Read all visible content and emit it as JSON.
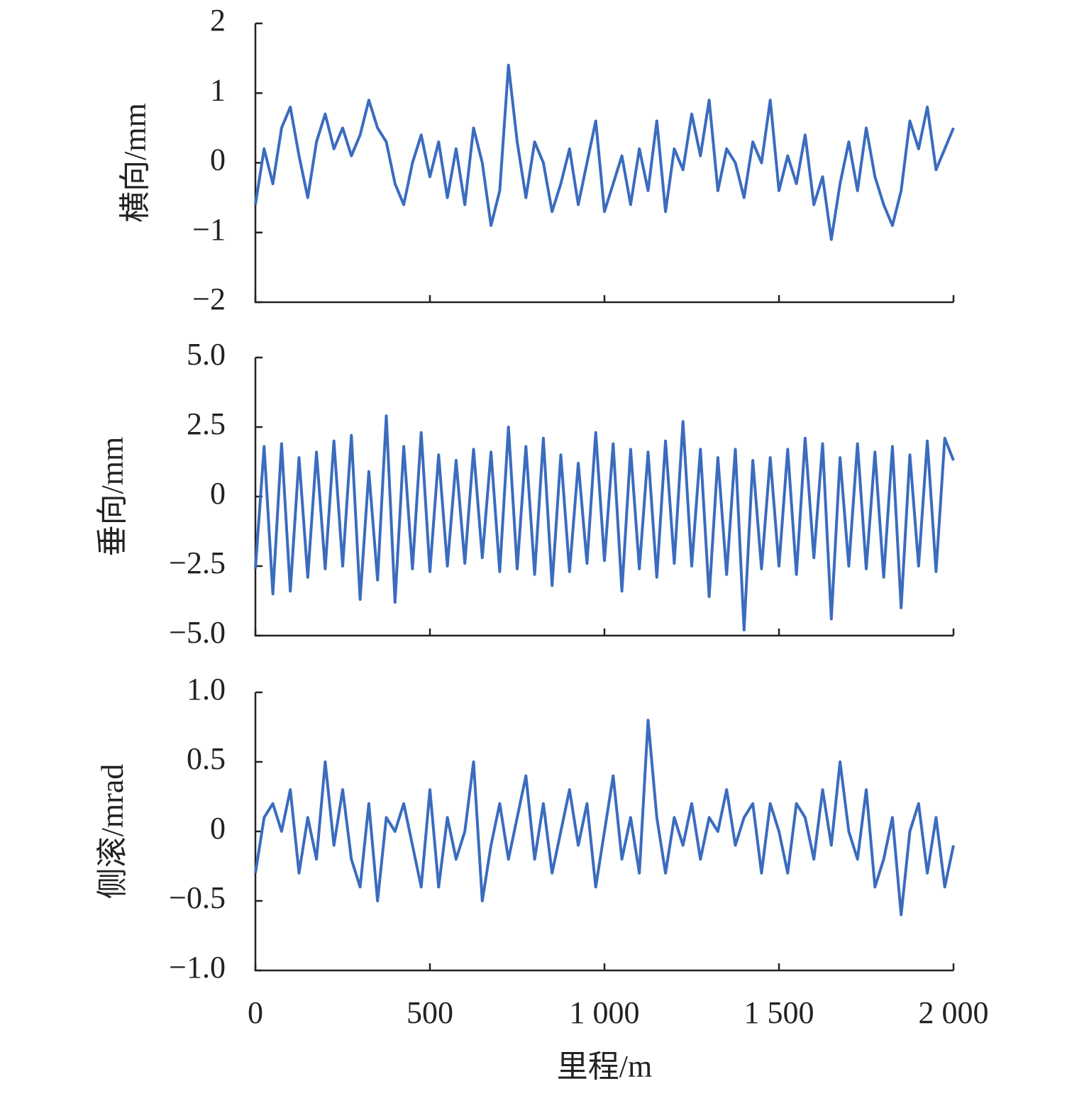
{
  "chart_data": [
    {
      "type": "line",
      "ylabel": "横向/mm",
      "x": [
        0,
        25,
        50,
        75,
        100,
        125,
        150,
        175,
        200,
        225,
        250,
        275,
        300,
        325,
        350,
        375,
        400,
        425,
        450,
        475,
        500,
        525,
        550,
        575,
        600,
        625,
        650,
        675,
        700,
        725,
        750,
        775,
        800,
        825,
        850,
        875,
        900,
        925,
        950,
        975,
        1000,
        1025,
        1050,
        1075,
        1100,
        1125,
        1150,
        1175,
        1200,
        1225,
        1250,
        1275,
        1300,
        1325,
        1350,
        1375,
        1400,
        1425,
        1450,
        1475,
        1500,
        1525,
        1550,
        1575,
        1600,
        1625,
        1650,
        1675,
        1700,
        1725,
        1750,
        1775,
        1800,
        1825,
        1850,
        1875,
        1900,
        1925,
        1950,
        1975,
        2000
      ],
      "series": [
        {
          "color": "#3a6cbf",
          "values": [
            -0.6,
            0.2,
            -0.3,
            0.5,
            0.8,
            0.1,
            -0.5,
            0.3,
            0.7,
            0.2,
            0.5,
            0.1,
            0.4,
            0.9,
            0.5,
            0.3,
            -0.3,
            -0.6,
            0.0,
            0.4,
            -0.2,
            0.3,
            -0.5,
            0.2,
            -0.6,
            0.5,
            0.0,
            -0.9,
            -0.4,
            1.4,
            0.3,
            -0.5,
            0.3,
            0.0,
            -0.7,
            -0.3,
            0.2,
            -0.6,
            0.0,
            0.6,
            -0.7,
            -0.3,
            0.1,
            -0.6,
            0.2,
            -0.4,
            0.6,
            -0.7,
            0.2,
            -0.1,
            0.7,
            0.1,
            0.9,
            -0.4,
            0.2,
            0.0,
            -0.5,
            0.3,
            0.0,
            0.9,
            -0.4,
            0.1,
            -0.3,
            0.4,
            -0.6,
            -0.2,
            -1.1,
            -0.3,
            0.3,
            -0.4,
            0.5,
            -0.2,
            -0.6,
            -0.9,
            -0.4,
            0.6,
            0.2,
            0.8,
            -0.1,
            0.2,
            0.5
          ]
        }
      ],
      "xlim": [
        0,
        2000
      ],
      "xticks": [
        0,
        500,
        1000,
        1500,
        2000
      ],
      "ylim": [
        -2,
        2
      ],
      "yticks": [
        {
          "value": -2,
          "label": "−2"
        },
        {
          "value": -1,
          "label": "−1"
        },
        0,
        1,
        2
      ],
      "grid": false
    },
    {
      "type": "line",
      "ylabel": "垂向/mm",
      "x": [
        0,
        25,
        50,
        75,
        100,
        125,
        150,
        175,
        200,
        225,
        250,
        275,
        300,
        325,
        350,
        375,
        400,
        425,
        450,
        475,
        500,
        525,
        550,
        575,
        600,
        625,
        650,
        675,
        700,
        725,
        750,
        775,
        800,
        825,
        850,
        875,
        900,
        925,
        950,
        975,
        1000,
        1025,
        1050,
        1075,
        1100,
        1125,
        1150,
        1175,
        1200,
        1225,
        1250,
        1275,
        1300,
        1325,
        1350,
        1375,
        1400,
        1425,
        1450,
        1475,
        1500,
        1525,
        1550,
        1575,
        1600,
        1625,
        1650,
        1675,
        1700,
        1725,
        1750,
        1775,
        1800,
        1825,
        1850,
        1875,
        1900,
        1925,
        1950,
        1975,
        2000
      ],
      "series": [
        {
          "color": "#3a6cbf",
          "values": [
            -2.6,
            1.8,
            -3.5,
            1.9,
            -3.4,
            1.4,
            -2.9,
            1.6,
            -2.6,
            2.0,
            -2.5,
            2.2,
            -3.7,
            0.9,
            -3.0,
            2.9,
            -3.8,
            1.8,
            -2.6,
            2.3,
            -2.7,
            1.5,
            -2.5,
            1.3,
            -2.4,
            1.7,
            -2.2,
            1.6,
            -2.7,
            2.5,
            -2.6,
            1.8,
            -2.8,
            2.1,
            -3.2,
            1.5,
            -2.7,
            1.2,
            -2.4,
            2.3,
            -2.3,
            1.9,
            -3.4,
            1.7,
            -2.6,
            1.6,
            -2.9,
            2.0,
            -2.4,
            2.7,
            -2.5,
            1.7,
            -3.6,
            1.4,
            -2.8,
            1.7,
            -4.8,
            1.3,
            -2.6,
            1.4,
            -2.5,
            1.7,
            -2.8,
            2.1,
            -2.2,
            1.9,
            -4.4,
            1.4,
            -2.5,
            1.9,
            -2.6,
            1.6,
            -2.9,
            1.8,
            -4.0,
            1.5,
            -2.5,
            2.0,
            -2.7,
            2.1,
            1.3
          ]
        }
      ],
      "xlim": [
        0,
        2000
      ],
      "xticks": [
        0,
        500,
        1000,
        1500,
        2000
      ],
      "ylim": [
        -5,
        5
      ],
      "yticks": [
        {
          "value": -5,
          "label": "−5.0"
        },
        {
          "value": -2.5,
          "label": "−2.5"
        },
        0,
        2.5,
        {
          "value": 5,
          "label": "5.0"
        }
      ],
      "grid": false
    },
    {
      "type": "line",
      "ylabel": "侧滚/mrad",
      "xlabel": "里程/m",
      "x": [
        0,
        25,
        50,
        75,
        100,
        125,
        150,
        175,
        200,
        225,
        250,
        275,
        300,
        325,
        350,
        375,
        400,
        425,
        450,
        475,
        500,
        525,
        550,
        575,
        600,
        625,
        650,
        675,
        700,
        725,
        750,
        775,
        800,
        825,
        850,
        875,
        900,
        925,
        950,
        975,
        1000,
        1025,
        1050,
        1075,
        1100,
        1125,
        1150,
        1175,
        1200,
        1225,
        1250,
        1275,
        1300,
        1325,
        1350,
        1375,
        1400,
        1425,
        1450,
        1475,
        1500,
        1525,
        1550,
        1575,
        1600,
        1625,
        1650,
        1675,
        1700,
        1725,
        1750,
        1775,
        1800,
        1825,
        1850,
        1875,
        1900,
        1925,
        1950,
        1975,
        2000
      ],
      "series": [
        {
          "color": "#3a6cbf",
          "values": [
            -0.3,
            0.1,
            0.2,
            0.0,
            0.3,
            -0.3,
            0.1,
            -0.2,
            0.5,
            -0.1,
            0.3,
            -0.2,
            -0.4,
            0.2,
            -0.5,
            0.1,
            0.0,
            0.2,
            -0.1,
            -0.4,
            0.3,
            -0.4,
            0.1,
            -0.2,
            0.0,
            0.5,
            -0.5,
            -0.1,
            0.2,
            -0.2,
            0.1,
            0.4,
            -0.2,
            0.2,
            -0.3,
            0.0,
            0.3,
            -0.1,
            0.2,
            -0.4,
            0.0,
            0.4,
            -0.2,
            0.1,
            -0.3,
            0.8,
            0.1,
            -0.3,
            0.1,
            -0.1,
            0.2,
            -0.2,
            0.1,
            0.0,
            0.3,
            -0.1,
            0.1,
            0.2,
            -0.3,
            0.2,
            0.0,
            -0.3,
            0.2,
            0.1,
            -0.2,
            0.3,
            -0.1,
            0.5,
            0.0,
            -0.2,
            0.3,
            -0.4,
            -0.2,
            0.1,
            -0.6,
            0.0,
            0.2,
            -0.3,
            0.1,
            -0.4,
            -0.1
          ]
        }
      ],
      "xlim": [
        0,
        2000
      ],
      "xticks": [
        0,
        {
          "value": 500,
          "label": "500"
        },
        {
          "value": 1000,
          "label": "1 000"
        },
        {
          "value": 1500,
          "label": "1 500"
        },
        {
          "value": 2000,
          "label": "2 000"
        }
      ],
      "ylim": [
        -1,
        1
      ],
      "yticks": [
        {
          "value": -1,
          "label": "−1.0"
        },
        {
          "value": -0.5,
          "label": "−0.5"
        },
        0,
        0.5,
        {
          "value": 1,
          "label": "1.0"
        }
      ],
      "grid": false
    }
  ]
}
